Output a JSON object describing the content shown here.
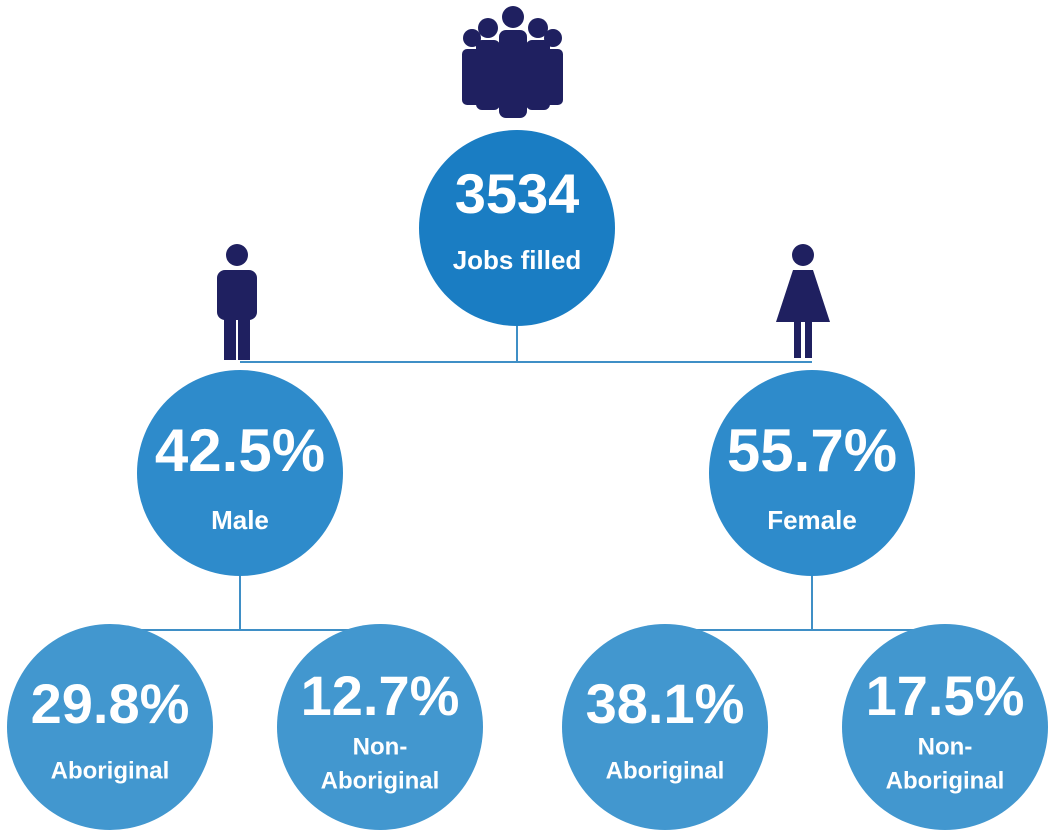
{
  "nodes": [
    {
      "value": "3534",
      "label": [
        "Jobs filled"
      ]
    },
    {
      "value": "42.5%",
      "label": [
        "Male"
      ]
    },
    {
      "value": "55.7%",
      "label": [
        "Female"
      ]
    },
    {
      "value": "29.8%",
      "label": [
        "Aboriginal"
      ]
    },
    {
      "value": "12.7%",
      "label": [
        "Non-",
        "Aboriginal"
      ]
    },
    {
      "value": "38.1%",
      "label": [
        "Aboriginal"
      ]
    },
    {
      "value": "17.5%",
      "label": [
        "Non-",
        "Aboriginal"
      ]
    }
  ]
}
